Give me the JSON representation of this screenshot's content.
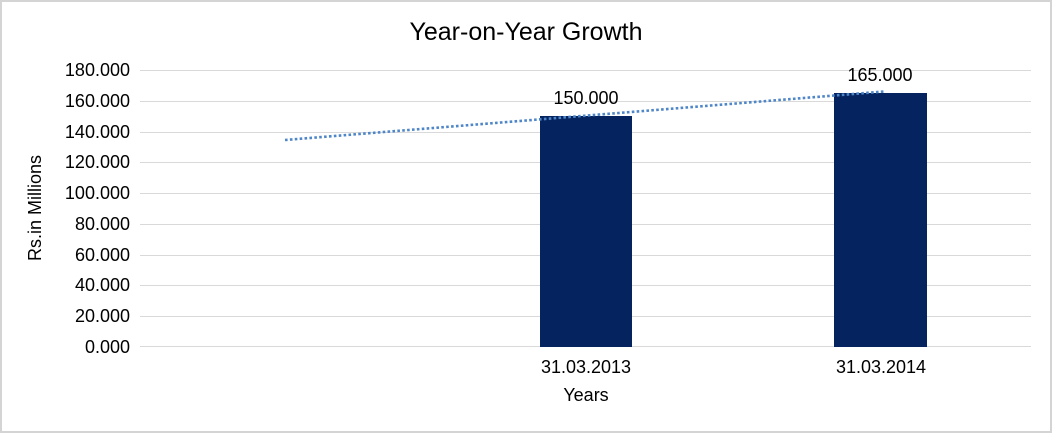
{
  "chart_data": {
    "type": "bar",
    "title": "Year-on-Year Growth",
    "xlabel": "Years",
    "ylabel": "Rs.in Millions",
    "categories": [
      "31.03.2013",
      "31.03.2014"
    ],
    "values": [
      150,
      165
    ],
    "data_labels": [
      "150.000",
      "165.000"
    ],
    "yticks": [
      "180.000",
      "160.000",
      "140.000",
      "120.000",
      "100.000",
      "80.000",
      "60.000",
      "40.000",
      "20.000",
      "0.000"
    ],
    "ylim": [
      0,
      180
    ],
    "ytick_step": 20,
    "grid": true,
    "legend": false,
    "trendline": {
      "style": "dotted",
      "start_value": 134.5,
      "end_value": 166
    },
    "colors": {
      "bar": "#05235f",
      "trendline": "#4f86c8",
      "gridline": "#d9d9d9",
      "text": "#000000",
      "border": "#d4d4d4",
      "background": "#ffffff"
    }
  }
}
